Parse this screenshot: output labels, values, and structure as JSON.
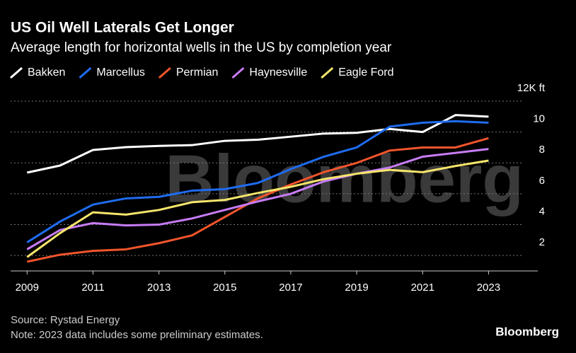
{
  "chart_data": {
    "type": "line",
    "title": "US Oil Well Laterals Get Longer",
    "subtitle": "Average length for horizontal wells in the US by completion year",
    "x": [
      2009,
      2010,
      2011,
      2012,
      2013,
      2014,
      2015,
      2016,
      2017,
      2018,
      2019,
      2020,
      2021,
      2022,
      2023
    ],
    "series": [
      {
        "name": "Bakken",
        "color": "#ffffff",
        "values": [
          7.37,
          7.83,
          8.84,
          9.02,
          9.1,
          9.15,
          9.43,
          9.5,
          9.7,
          9.9,
          9.95,
          10.2,
          10.0,
          11.1,
          11.0
        ]
      },
      {
        "name": "Marcellus",
        "color": "#1f6cf0",
        "values": [
          2.85,
          4.2,
          5.3,
          5.7,
          5.8,
          6.2,
          6.3,
          6.7,
          7.6,
          8.4,
          9.0,
          10.35,
          10.6,
          10.7,
          10.6
        ]
      },
      {
        "name": "Permian",
        "color": "#f2552c",
        "values": [
          1.6,
          2.05,
          2.3,
          2.4,
          2.8,
          3.3,
          4.5,
          5.7,
          6.6,
          7.4,
          8.0,
          8.8,
          9.0,
          9.0,
          9.6
        ]
      },
      {
        "name": "Haynesville",
        "color": "#c77cf5",
        "values": [
          2.4,
          3.65,
          4.1,
          3.95,
          4.0,
          4.4,
          4.95,
          5.5,
          6.0,
          6.8,
          7.3,
          7.7,
          8.4,
          8.65,
          8.9
        ]
      },
      {
        "name": "Eagle Ford",
        "color": "#f5e56b",
        "values": [
          1.9,
          3.45,
          4.8,
          4.65,
          4.95,
          5.45,
          5.6,
          6.05,
          6.45,
          6.95,
          7.3,
          7.55,
          7.4,
          7.8,
          8.15
        ]
      }
    ],
    "xlim": [
      2008.5,
      2024
    ],
    "xticks": [
      2009,
      2011,
      2013,
      2015,
      2017,
      2019,
      2021,
      2023
    ],
    "ylim": [
      1,
      12
    ],
    "yticks": [
      2,
      4,
      6,
      8,
      10,
      {
        "value": 12,
        "label": "12K ft"
      }
    ],
    "grid": true,
    "watermark": "Bloomberg",
    "source": "Source: Rystad Energy",
    "note": "Note: 2023 data includes some preliminary estimates.",
    "brand": "Bloomberg"
  }
}
